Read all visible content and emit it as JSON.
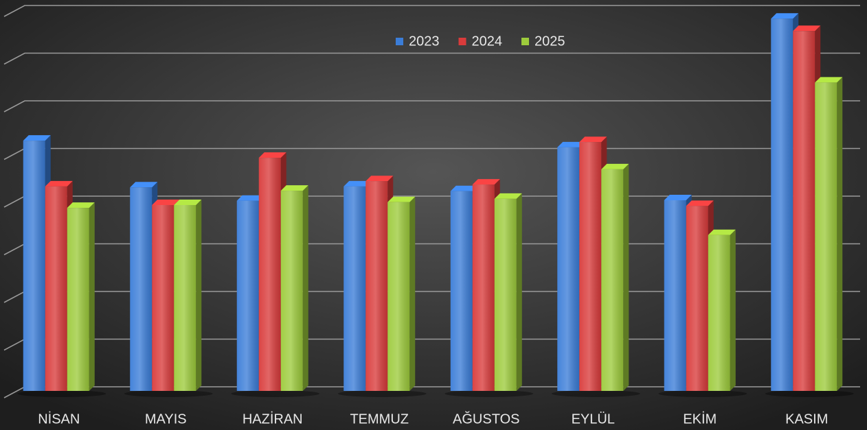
{
  "chart_data": {
    "type": "bar3d",
    "categories": [
      "NİSAN",
      "MAYIS",
      "HAZİRAN",
      "TEMMUZ",
      "AĞUSTOS",
      "EYLÜL",
      "EKİM",
      "KASIM"
    ],
    "series": [
      {
        "name": "2023",
        "color": "#3b7dd8",
        "values": [
          5.25,
          4.27,
          3.99,
          4.29,
          4.19,
          5.11,
          4.0,
          7.81
        ]
      },
      {
        "name": "2024",
        "color": "#d93b3b",
        "values": [
          4.29,
          3.9,
          4.89,
          4.4,
          4.33,
          5.22,
          3.88,
          7.55
        ]
      },
      {
        "name": "2025",
        "color": "#9dcb3c",
        "values": [
          3.84,
          3.9,
          4.2,
          3.96,
          4.03,
          4.65,
          3.27,
          6.47
        ]
      }
    ],
    "ylim": [
      0,
      8
    ],
    "yticks": [
      0,
      1,
      2,
      3,
      4,
      5,
      6,
      7,
      8
    ],
    "grid": true,
    "legend": "top"
  }
}
